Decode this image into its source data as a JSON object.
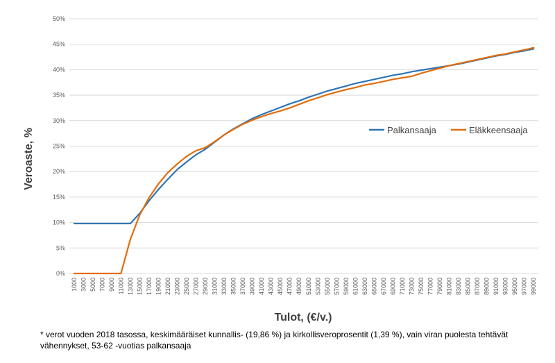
{
  "chart_data": {
    "type": "line",
    "xlabel": "Tulot, (€/v.)",
    "ylabel": "Veroaste, %",
    "ylim": [
      0,
      50
    ],
    "yticks": [
      "0%",
      "5%",
      "10%",
      "15%",
      "20%",
      "25%",
      "30%",
      "35%",
      "40%",
      "45%",
      "50%"
    ],
    "x": [
      1000,
      3000,
      5000,
      7000,
      9000,
      11000,
      13000,
      15000,
      17000,
      19000,
      21000,
      23000,
      25000,
      27000,
      29000,
      31000,
      33000,
      35000,
      37000,
      39000,
      41000,
      43000,
      45000,
      47000,
      49000,
      51000,
      53000,
      55000,
      57000,
      59000,
      61000,
      63000,
      65000,
      67000,
      69000,
      71000,
      73000,
      75000,
      77000,
      79000,
      81000,
      83000,
      85000,
      87000,
      89000,
      91000,
      93000,
      95000,
      97000,
      99000
    ],
    "x_tick_labels": [
      "1000",
      "3000",
      "5000",
      "7000",
      "9000",
      "11000",
      "13000",
      "15000",
      "17000",
      "19000",
      "21000",
      "23000",
      "25000",
      "27000",
      "29000",
      "31000",
      "33000",
      "35000",
      "37000",
      "39000",
      "41000",
      "43000",
      "45000",
      "47000",
      "49000",
      "51000",
      "53000",
      "55000",
      "57000",
      "59000",
      "61000",
      "63000",
      "65000",
      "67000",
      "69000",
      "71000",
      "73000",
      "75000",
      "77000",
      "79000",
      "81000",
      "83000",
      "85000",
      "87000",
      "89000",
      "91000",
      "93000",
      "95000",
      "97000",
      "99000"
    ],
    "series": [
      {
        "name": "Palkansaaja",
        "color": "#2e75b6",
        "values": [
          9.8,
          9.8,
          9.8,
          9.8,
          9.8,
          9.8,
          9.8,
          11.8,
          14.3,
          16.5,
          18.5,
          20.4,
          21.9,
          23.3,
          24.4,
          25.8,
          27.2,
          28.4,
          29.4,
          30.4,
          31.2,
          31.9,
          32.6,
          33.3,
          33.9,
          34.6,
          35.2,
          35.8,
          36.3,
          36.8,
          37.3,
          37.7,
          38.1,
          38.5,
          38.9,
          39.2,
          39.6,
          39.9,
          40.2,
          40.5,
          40.8,
          41.1,
          41.5,
          41.9,
          42.3,
          42.7,
          43.0,
          43.4,
          43.7,
          44.1
        ]
      },
      {
        "name": "Eläkkeensaaja",
        "color": "#e36c0a",
        "values": [
          0,
          0,
          0,
          0,
          0,
          0,
          6.7,
          11.5,
          14.9,
          17.6,
          19.8,
          21.5,
          23.0,
          24.1,
          24.7,
          25.9,
          27.2,
          28.3,
          29.3,
          30.1,
          30.8,
          31.4,
          31.9,
          32.5,
          33.2,
          33.9,
          34.5,
          35.1,
          35.6,
          36.1,
          36.5,
          37.0,
          37.3,
          37.7,
          38.1,
          38.4,
          38.7,
          39.3,
          39.8,
          40.3,
          40.8,
          41.2,
          41.6,
          42.0,
          42.4,
          42.8,
          43.1,
          43.5,
          43.9,
          44.3
        ]
      }
    ],
    "grid": true,
    "legend_position": "right"
  },
  "footnote": "* verot vuoden 2018 tasossa, keskimääräiset kunnallis- (19,86 %) ja kirkollisveroprosentit (1,39 %), vain viran puolesta tehtävät vähennykset, 53-62 -vuotias palkansaaja"
}
